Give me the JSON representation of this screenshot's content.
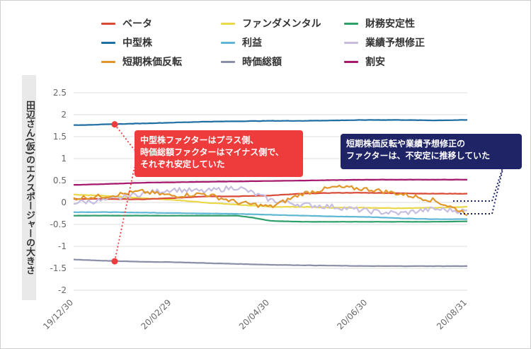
{
  "chart_data": {
    "type": "line",
    "ylabel": "田辺さん(仮)のエクスポージャーの大きさ",
    "ylim": [
      -2,
      2.5
    ],
    "yticks": [
      "2.5",
      "2",
      "1.5",
      "1",
      "0.5",
      "0",
      "-0.5",
      "-1",
      "-1.5",
      "-2"
    ],
    "xlim": [
      "2019-12-30",
      "2020-08-31"
    ],
    "xticks": [
      {
        "date": "2019-12-30",
        "label": "19/12/30"
      },
      {
        "date": "2020-02-29",
        "label": "20/02/29"
      },
      {
        "date": "2020-04-30",
        "label": "20/04/30"
      },
      {
        "date": "2020-06-30",
        "label": "20/06/30"
      },
      {
        "date": "2020-08-31",
        "label": "20/08/31"
      }
    ],
    "grid": true,
    "legend_position": "top",
    "series": [
      {
        "name": "ベータ",
        "color": "#d94a36",
        "x": [
          "2019-12-30",
          "2020-01-20",
          "2020-02-10",
          "2020-03-01",
          "2020-03-20",
          "2020-04-10",
          "2020-05-01",
          "2020-05-20",
          "2020-06-10",
          "2020-07-01",
          "2020-07-20",
          "2020-08-10",
          "2020-08-31"
        ],
        "values": [
          0.08,
          0.08,
          0.07,
          0.1,
          0.14,
          0.14,
          0.16,
          0.2,
          0.22,
          0.22,
          0.21,
          0.2,
          0.2
        ]
      },
      {
        "name": "ファンダメンタル",
        "color": "#e8d84a",
        "x": [
          "2019-12-30",
          "2020-01-20",
          "2020-02-10",
          "2020-03-01",
          "2020-03-20",
          "2020-04-10",
          "2020-05-01",
          "2020-05-20",
          "2020-06-10",
          "2020-07-01",
          "2020-07-20",
          "2020-08-10",
          "2020-08-31"
        ],
        "values": [
          0.18,
          0.15,
          0.1,
          0.06,
          0.0,
          -0.05,
          -0.1,
          -0.1,
          -0.12,
          -0.12,
          -0.13,
          -0.12,
          -0.1
        ]
      },
      {
        "name": "財務安定性",
        "color": "#2e9e6a",
        "x": [
          "2019-12-30",
          "2020-01-20",
          "2020-02-10",
          "2020-03-01",
          "2020-03-20",
          "2020-04-10",
          "2020-04-20",
          "2020-05-01",
          "2020-05-20",
          "2020-06-10",
          "2020-07-01",
          "2020-07-20",
          "2020-08-10",
          "2020-08-31"
        ],
        "values": [
          -0.3,
          -0.3,
          -0.3,
          -0.3,
          -0.3,
          -0.3,
          -0.35,
          -0.42,
          -0.44,
          -0.44,
          -0.44,
          -0.44,
          -0.44,
          -0.43
        ]
      },
      {
        "name": "中型株",
        "color": "#1f6fa3",
        "x": [
          "2019-12-30",
          "2020-01-20",
          "2020-02-10",
          "2020-03-01",
          "2020-03-20",
          "2020-04-10",
          "2020-05-01",
          "2020-05-20",
          "2020-06-10",
          "2020-07-01",
          "2020-07-20",
          "2020-08-10",
          "2020-08-31"
        ],
        "values": [
          1.76,
          1.78,
          1.8,
          1.82,
          1.84,
          1.85,
          1.86,
          1.86,
          1.87,
          1.88,
          1.88,
          1.87,
          1.88
        ]
      },
      {
        "name": "利益",
        "color": "#5fb7d4",
        "x": [
          "2019-12-30",
          "2020-01-20",
          "2020-02-10",
          "2020-03-01",
          "2020-03-20",
          "2020-04-10",
          "2020-05-01",
          "2020-05-20",
          "2020-06-10",
          "2020-07-01",
          "2020-07-20",
          "2020-08-10",
          "2020-08-31"
        ],
        "values": [
          -0.22,
          -0.22,
          -0.23,
          -0.24,
          -0.25,
          -0.26,
          -0.28,
          -0.3,
          -0.32,
          -0.33,
          -0.36,
          -0.38,
          -0.38
        ]
      },
      {
        "name": "業績予想修正",
        "color": "#c7bde0",
        "x": [
          "2019-12-30",
          "2020-01-20",
          "2020-02-10",
          "2020-03-01",
          "2020-03-20",
          "2020-04-10",
          "2020-05-01",
          "2020-05-20",
          "2020-06-10",
          "2020-07-01",
          "2020-07-20",
          "2020-08-10",
          "2020-08-31"
        ],
        "values": [
          0.0,
          0.05,
          0.2,
          0.3,
          0.25,
          0.35,
          0.05,
          -0.05,
          -0.1,
          -0.2,
          -0.25,
          -0.15,
          -0.2
        ]
      },
      {
        "name": "短期株価反転",
        "color": "#e0962a",
        "x": [
          "2019-12-30",
          "2020-01-20",
          "2020-02-10",
          "2020-03-01",
          "2020-03-20",
          "2020-04-10",
          "2020-05-01",
          "2020-05-20",
          "2020-06-10",
          "2020-07-01",
          "2020-07-20",
          "2020-08-10",
          "2020-08-31"
        ],
        "values": [
          0.1,
          0.15,
          0.25,
          0.15,
          0.2,
          0.0,
          -0.1,
          0.2,
          0.35,
          0.3,
          0.2,
          0.05,
          -0.25
        ]
      },
      {
        "name": "時価総額",
        "color": "#8a8ea6",
        "x": [
          "2019-12-30",
          "2020-01-20",
          "2020-02-10",
          "2020-03-01",
          "2020-03-20",
          "2020-04-10",
          "2020-05-01",
          "2020-05-20",
          "2020-06-10",
          "2020-07-01",
          "2020-07-20",
          "2020-08-10",
          "2020-08-31"
        ],
        "values": [
          -1.3,
          -1.33,
          -1.35,
          -1.36,
          -1.38,
          -1.4,
          -1.42,
          -1.43,
          -1.44,
          -1.45,
          -1.45,
          -1.45,
          -1.45
        ]
      },
      {
        "name": "割安",
        "color": "#a5186e",
        "x": [
          "2019-12-30",
          "2020-01-20",
          "2020-02-10",
          "2020-03-01",
          "2020-03-20",
          "2020-04-10",
          "2020-05-01",
          "2020-05-20",
          "2020-06-10",
          "2020-07-01",
          "2020-07-20",
          "2020-08-10",
          "2020-08-31"
        ],
        "values": [
          0.4,
          0.42,
          0.45,
          0.46,
          0.47,
          0.48,
          0.49,
          0.5,
          0.51,
          0.52,
          0.52,
          0.52,
          0.52
        ]
      }
    ],
    "annotations": [
      {
        "lines": [
          "中型株ファクターはプラス側、",
          "時価総額ファクターはマイナス側で、",
          "それぞれ安定していた"
        ],
        "color": "#ee3b3b"
      },
      {
        "lines": [
          "短期株価反転や業績予想修正の",
          "ファクターは、不安定に推移していた"
        ],
        "color": "#1f2466"
      }
    ]
  }
}
